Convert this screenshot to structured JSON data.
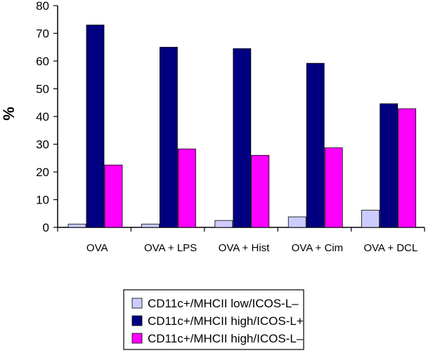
{
  "chart_data": {
    "type": "bar",
    "ylabel": "%",
    "xlabel": "",
    "ylim": [
      0,
      80
    ],
    "yticks": [
      "0",
      "10",
      "20",
      "30",
      "40",
      "50",
      "60",
      "70",
      "80"
    ],
    "categories": [
      "OVA",
      "OVA + LPS",
      "OVA + Hist",
      "OVA + Cim",
      "OVA + DCL"
    ],
    "series": [
      {
        "name": "CD11c+/MHCII low/ICOS-L–",
        "color": "#ccccff",
        "values": [
          1.2,
          1.2,
          2.5,
          3.8,
          6.2
        ]
      },
      {
        "name": "CD11c+/MHCII high/ICOS-L+",
        "color": "#000080",
        "values": [
          73,
          65,
          64.5,
          59.2,
          44.6
        ]
      },
      {
        "name": "CD11c+/MHCII high/ICOS-L–",
        "color": "#ff00ff",
        "values": [
          22.5,
          28.3,
          26,
          28.7,
          42.8
        ]
      }
    ],
    "grid": false,
    "legend_position": "bottom"
  }
}
